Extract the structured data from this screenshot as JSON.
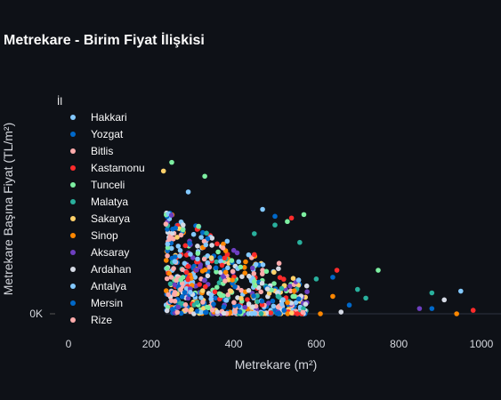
{
  "chart_data": {
    "type": "scatter",
    "title": "Metrekare - Birim Fiyat İlişkisi",
    "xlabel": "Metrekare (m²)",
    "ylabel": "Metrekare Başına Fiyat (TL/m²)",
    "xlim": [
      0,
      1040
    ],
    "ylim": [
      -5,
      1200
    ],
    "x_ticks": [
      0,
      200,
      400,
      600,
      800,
      1000
    ],
    "y_ticks": [
      0
    ],
    "y_tick_labels": [
      "0K"
    ],
    "x_tick_labels": [
      "0",
      "200",
      "400",
      "600",
      "800",
      "1000"
    ],
    "legend": {
      "title": "İl",
      "placement": "left",
      "entries": [
        {
          "name": "Hakkari",
          "color": "#83c9ff"
        },
        {
          "name": "Yozgat",
          "color": "#0068c9"
        },
        {
          "name": "Bitlis",
          "color": "#ffabab"
        },
        {
          "name": "Kastamonu",
          "color": "#ff2b2b"
        },
        {
          "name": "Tunceli",
          "color": "#7defa1"
        },
        {
          "name": "Malatya",
          "color": "#29b09d"
        },
        {
          "name": "Sakarya",
          "color": "#ffd16a"
        },
        {
          "name": "Sinop",
          "color": "#ff8700"
        },
        {
          "name": "Aksaray",
          "color": "#6d3fc0"
        },
        {
          "name": "Ardahan",
          "color": "#d5dae5"
        },
        {
          "name": "Antalya",
          "color": "#83c9ff"
        },
        {
          "name": "Mersin",
          "color": "#0068c9"
        },
        {
          "name": "Rize",
          "color": "#ffabab"
        }
      ]
    },
    "outliers": [
      {
        "x": 250,
        "y": 870,
        "color": "#7defa1"
      },
      {
        "x": 230,
        "y": 820,
        "color": "#ffd16a"
      },
      {
        "x": 290,
        "y": 700,
        "color": "#83c9ff"
      },
      {
        "x": 330,
        "y": 790,
        "color": "#7defa1"
      },
      {
        "x": 470,
        "y": 600,
        "color": "#83c9ff"
      },
      {
        "x": 500,
        "y": 560,
        "color": "#0068c9"
      },
      {
        "x": 540,
        "y": 550,
        "color": "#ff2b2b"
      },
      {
        "x": 570,
        "y": 570,
        "color": "#7defa1"
      },
      {
        "x": 500,
        "y": 510,
        "color": "#29b09d"
      },
      {
        "x": 530,
        "y": 530,
        "color": "#7defa1"
      },
      {
        "x": 450,
        "y": 460,
        "color": "#29b09d"
      },
      {
        "x": 560,
        "y": 410,
        "color": "#29b09d"
      },
      {
        "x": 450,
        "y": 340,
        "color": "#ff2b2b"
      },
      {
        "x": 510,
        "y": 290,
        "color": "#ffabab"
      },
      {
        "x": 650,
        "y": 250,
        "color": "#ff2b2b"
      },
      {
        "x": 640,
        "y": 210,
        "color": "#0068c9"
      },
      {
        "x": 600,
        "y": 200,
        "color": "#29b09d"
      },
      {
        "x": 750,
        "y": 250,
        "color": "#7defa1"
      },
      {
        "x": 700,
        "y": 140,
        "color": "#29b09d"
      },
      {
        "x": 720,
        "y": 90,
        "color": "#29b09d"
      },
      {
        "x": 880,
        "y": 120,
        "color": "#29b09d"
      },
      {
        "x": 950,
        "y": 130,
        "color": "#83c9ff"
      },
      {
        "x": 910,
        "y": 80,
        "color": "#d5dae5"
      },
      {
        "x": 850,
        "y": 30,
        "color": "#6d3fc0"
      },
      {
        "x": 880,
        "y": 30,
        "color": "#0068c9"
      },
      {
        "x": 980,
        "y": 20,
        "color": "#ff2b2b"
      },
      {
        "x": 940,
        "y": 0,
        "color": "#ff8700"
      },
      {
        "x": 610,
        "y": 0,
        "color": "#ff8700"
      },
      {
        "x": 660,
        "y": 10,
        "color": "#d5dae5"
      },
      {
        "x": 680,
        "y": 50,
        "color": "#0068c9"
      },
      {
        "x": 640,
        "y": 100,
        "color": "#ff8700"
      }
    ],
    "cluster": {
      "x_range": [
        200,
        600
      ],
      "y_range": [
        0,
        700
      ],
      "count": 900,
      "note": "dense cloud of points concentrated at x 200-350"
    }
  }
}
